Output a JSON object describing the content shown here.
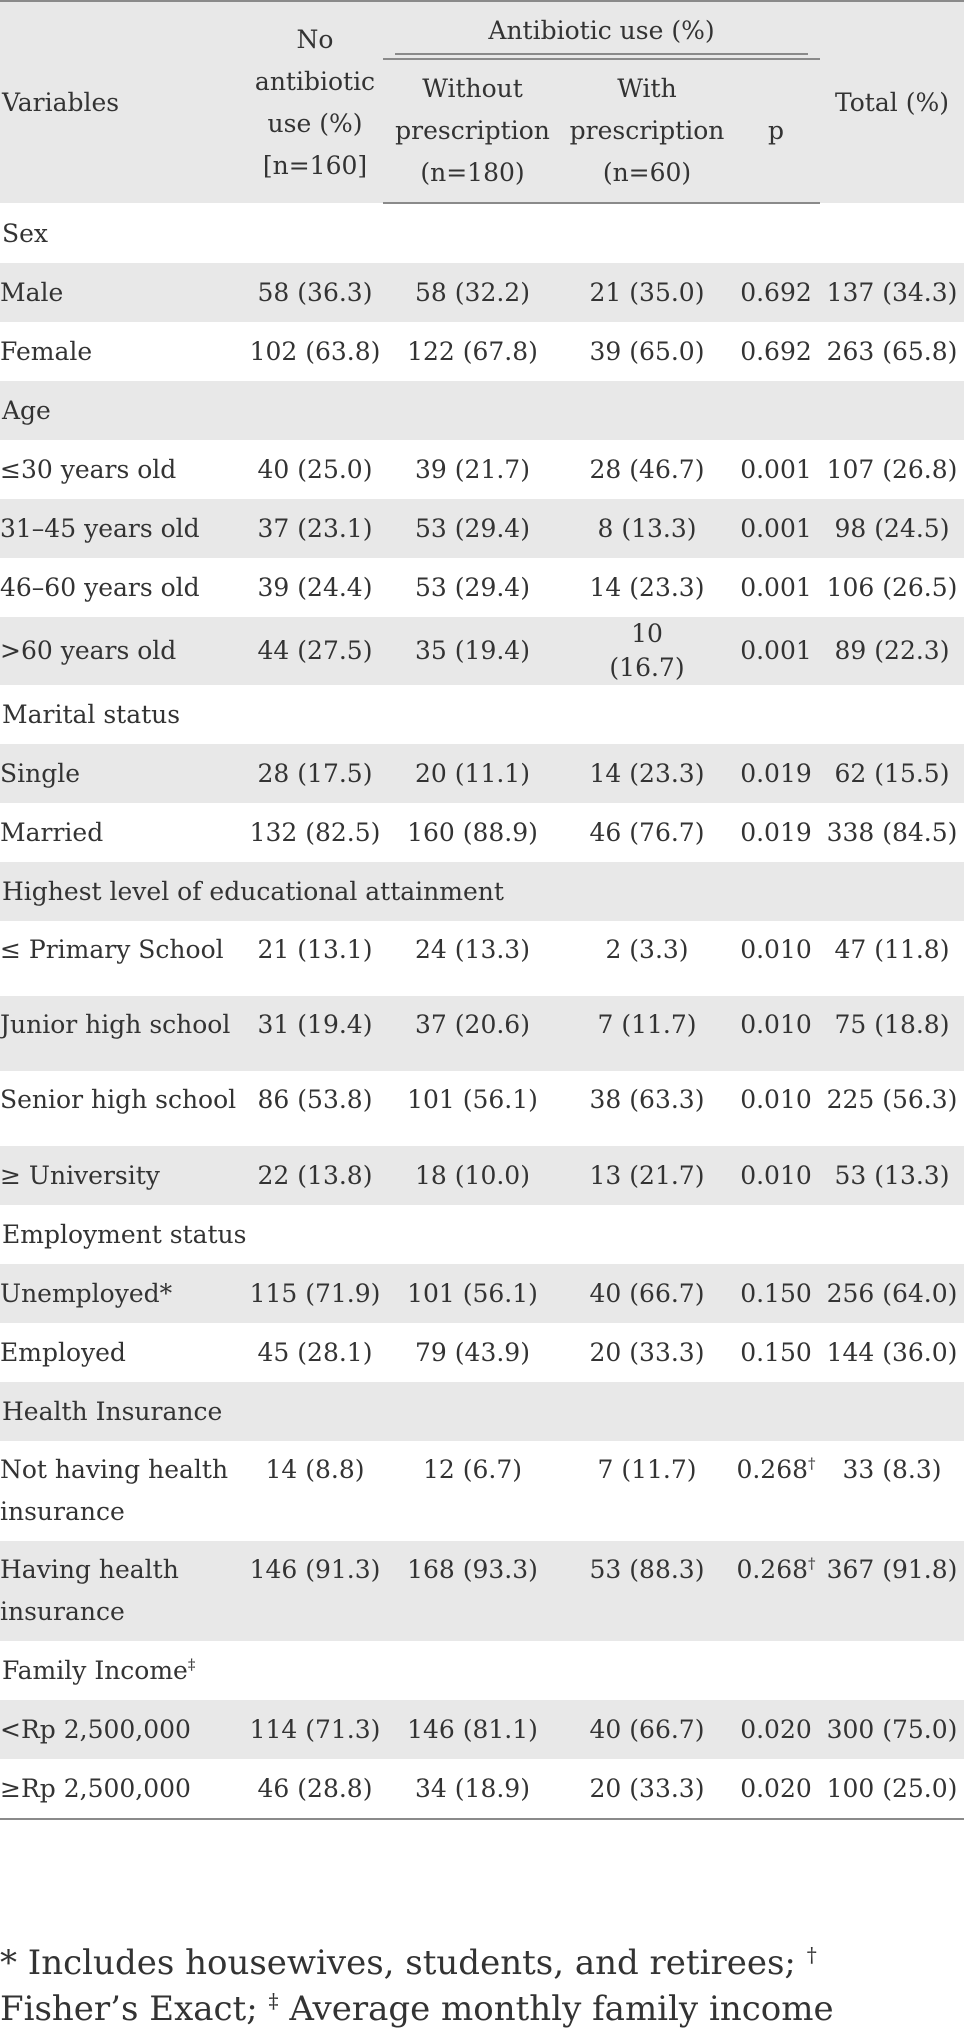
{
  "header": {
    "variables": "Variables",
    "no_antibiotic": "No antibiotic use (%) [n=160]",
    "antibiotic_use": "Antibiotic use (%)",
    "without_prescription": "Without prescription (n=180)",
    "with_prescription": "With prescription (n=60)",
    "p": "p",
    "total": "Total (%)"
  },
  "groups": [
    {
      "label": "Sex",
      "rows": [
        {
          "label": "Male",
          "no": "58 (36.3)",
          "without": "58 (32.2)",
          "with": "21 (35.0)",
          "p": "0.692",
          "total": "137 (34.3)"
        },
        {
          "label": "Female",
          "no": "102 (63.8)",
          "without": "122 (67.8)",
          "with": "39 (65.0)",
          "p": "0.692",
          "total": "263 (65.8)"
        }
      ]
    },
    {
      "label": "Age",
      "rows": [
        {
          "label": "≤30 years old",
          "no": "40 (25.0)",
          "without": "39 (21.7)",
          "with": "28 (46.7)",
          "p": "0.001",
          "total": "107 (26.8)"
        },
        {
          "label": "31–45 years old",
          "no": "37 (23.1)",
          "without": "53 (29.4)",
          "with": "8 (13.3)",
          "p": "0.001",
          "total": "98 (24.5)"
        },
        {
          "label": "46–60 years old",
          "no": "39 (24.4)",
          "without": "53 (29.4)",
          "with": "14 (23.3)",
          "p": "0.001",
          "total": "106 (26.5)"
        },
        {
          "label": ">60 years old",
          "no": "44 (27.5)",
          "without": "35 (19.4)",
          "with": "10 (16.7)",
          "p": "0.001",
          "total": "89 (22.3)"
        }
      ]
    },
    {
      "label": "Marital status",
      "rows": [
        {
          "label": "Single",
          "no": "28 (17.5)",
          "without": "20 (11.1)",
          "with": "14 (23.3)",
          "p": "0.019",
          "total": "62 (15.5)"
        },
        {
          "label": "Married",
          "no": "132 (82.5)",
          "without": "160 (88.9)",
          "with": "46 (76.7)",
          "p": "0.019",
          "total": "338 (84.5)"
        }
      ]
    },
    {
      "label": "Highest level of educational attainment",
      "rows": [
        {
          "label": "≤ Primary School",
          "no": "21 (13.1)",
          "without": "24 (13.3)",
          "with": "2 (3.3)",
          "p": "0.010",
          "total": "47 (11.8)"
        },
        {
          "label": "Junior high school",
          "no": "31 (19.4)",
          "without": "37 (20.6)",
          "with": "7 (11.7)",
          "p": "0.010",
          "total": "75 (18.8)"
        },
        {
          "label": "Senior high school",
          "no": "86 (53.8)",
          "without": "101 (56.1)",
          "with": "38 (63.3)",
          "p": "0.010",
          "total": "225 (56.3)"
        },
        {
          "label": "≥ University",
          "no": "22 (13.8)",
          "without": "18 (10.0)",
          "with": "13 (21.7)",
          "p": "0.010",
          "total": "53 (13.3)"
        }
      ]
    },
    {
      "label": "Employment status",
      "rows": [
        {
          "label": "Unemployed*",
          "no": "115 (71.9)",
          "without": "101 (56.1)",
          "with": "40 (66.7)",
          "p": "0.150",
          "total": "256 (64.0)"
        },
        {
          "label": "Employed",
          "no": "45 (28.1)",
          "without": "79 (43.9)",
          "with": "20 (33.3)",
          "p": "0.150",
          "total": "144 (36.0)"
        }
      ]
    },
    {
      "label": "Health Insurance",
      "rows": [
        {
          "label": "Not having health insurance",
          "no": "14 (8.8)",
          "without": "12 (6.7)",
          "with": "7 (11.7)",
          "p": "0.268",
          "p_mark": "†",
          "total": "33 (8.3)"
        },
        {
          "label": "Having health insurance",
          "no": "146 (91.3)",
          "without": "168 (93.3)",
          "with": "53 (88.3)",
          "p": "0.268",
          "p_mark": "†",
          "total": "367 (91.8)"
        }
      ]
    },
    {
      "label": "Family Income",
      "label_mark": "‡",
      "rows": [
        {
          "label": "<Rp 2,500,000",
          "no": "114 (71.3)",
          "without": "146 (81.1)",
          "with": "40 (66.7)",
          "p": "0.020",
          "total": "300 (75.0)"
        },
        {
          "label": "≥Rp 2,500,000",
          "no": "46 (28.8)",
          "without": "34 (18.9)",
          "with": "20 (33.3)",
          "p": "0.020",
          "total": "100 (25.0)"
        }
      ]
    }
  ],
  "footnote": {
    "part1": "* Includes housewives, students, and retirees;",
    "mark1": "†",
    "part2": "Fisher’s Exact;",
    "mark2": "‡",
    "part3": "Average monthly family income"
  }
}
